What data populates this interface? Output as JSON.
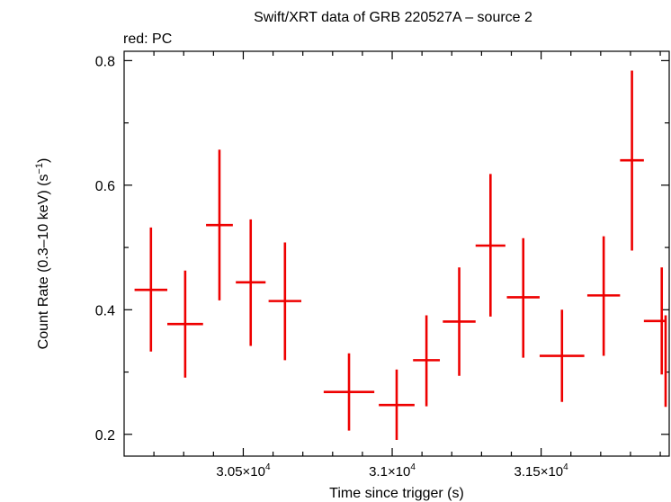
{
  "chart_data": {
    "type": "scatter",
    "title": "Swift/XRT data of GRB 220527A – source 2",
    "subtitle": "red: PC",
    "xlabel": "Time since trigger (s)",
    "ylabel_main": "Count Rate (0.3–10 keV) (s",
    "ylabel_sup": "−1",
    "ylabel_close": ")",
    "xlim": [
      30100,
      31930
    ],
    "ylim": [
      0.165,
      0.815
    ],
    "x_ticks": [
      {
        "value": 30500,
        "mantissa": "3.05×10",
        "exp": "4"
      },
      {
        "value": 31000,
        "mantissa": "3.1×10",
        "exp": "4"
      },
      {
        "value": 31500,
        "mantissa": "3.15×10",
        "exp": "4"
      }
    ],
    "y_ticks": [
      {
        "value": 0.2,
        "label": "0.2"
      },
      {
        "value": 0.4,
        "label": "0.4"
      },
      {
        "value": 0.6,
        "label": "0.6"
      },
      {
        "value": 0.8,
        "label": "0.8"
      }
    ],
    "series": [
      {
        "color": "#ee0000",
        "points": [
          {
            "x": 30190,
            "xerr_lo": 55,
            "xerr_hi": 55,
            "y": 0.432,
            "y_lo": 0.333,
            "y_hi": 0.532
          },
          {
            "x": 30305,
            "xerr_lo": 60,
            "xerr_hi": 60,
            "y": 0.377,
            "y_lo": 0.291,
            "y_hi": 0.463
          },
          {
            "x": 30420,
            "xerr_lo": 45,
            "xerr_hi": 45,
            "y": 0.536,
            "y_lo": 0.415,
            "y_hi": 0.657
          },
          {
            "x": 30525,
            "xerr_lo": 50,
            "xerr_hi": 50,
            "y": 0.444,
            "y_lo": 0.342,
            "y_hi": 0.545
          },
          {
            "x": 30640,
            "xerr_lo": 55,
            "xerr_hi": 55,
            "y": 0.414,
            "y_lo": 0.319,
            "y_hi": 0.508
          },
          {
            "x": 30855,
            "xerr_lo": 85,
            "xerr_hi": 85,
            "y": 0.268,
            "y_lo": 0.206,
            "y_hi": 0.33
          },
          {
            "x": 31015,
            "xerr_lo": 60,
            "xerr_hi": 60,
            "y": 0.247,
            "y_lo": 0.191,
            "y_hi": 0.304
          },
          {
            "x": 31115,
            "xerr_lo": 45,
            "xerr_hi": 45,
            "y": 0.319,
            "y_lo": 0.245,
            "y_hi": 0.391
          },
          {
            "x": 31225,
            "xerr_lo": 55,
            "xerr_hi": 55,
            "y": 0.381,
            "y_lo": 0.294,
            "y_hi": 0.468
          },
          {
            "x": 31330,
            "xerr_lo": 50,
            "xerr_hi": 50,
            "y": 0.503,
            "y_lo": 0.389,
            "y_hi": 0.618
          },
          {
            "x": 31440,
            "xerr_lo": 55,
            "xerr_hi": 55,
            "y": 0.42,
            "y_lo": 0.323,
            "y_hi": 0.515
          },
          {
            "x": 31570,
            "xerr_lo": 75,
            "xerr_hi": 75,
            "y": 0.326,
            "y_lo": 0.252,
            "y_hi": 0.4
          },
          {
            "x": 31710,
            "xerr_lo": 55,
            "xerr_hi": 55,
            "y": 0.423,
            "y_lo": 0.326,
            "y_hi": 0.518
          },
          {
            "x": 31805,
            "xerr_lo": 40,
            "xerr_hi": 40,
            "y": 0.64,
            "y_lo": 0.495,
            "y_hi": 0.784
          },
          {
            "x": 31905,
            "xerr_lo": 60,
            "xerr_hi": 60,
            "y": 0.382,
            "y_lo": 0.296,
            "y_hi": 0.468
          },
          {
            "x": 32020,
            "xerr_lo": 55,
            "xerr_hi": 55,
            "y": 0.317,
            "y_lo": 0.244,
            "y_hi": 0.391
          }
        ]
      }
    ]
  }
}
